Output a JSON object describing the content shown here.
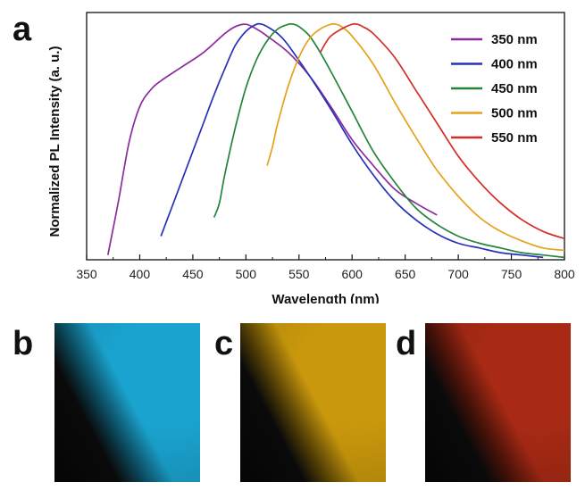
{
  "panels": {
    "a": "a",
    "b": "b",
    "c": "c",
    "d": "d"
  },
  "photos": [
    {
      "name": "photo-b",
      "color": "#1aa3cf"
    },
    {
      "name": "photo-c",
      "color": "#c9980c"
    },
    {
      "name": "photo-d",
      "color": "#a82a14"
    }
  ],
  "chart_data": {
    "type": "line",
    "title": "",
    "xlabel": "Wavelength (nm)",
    "ylabel": "Normalized PL Intensity (a. u.)",
    "xlim": [
      350,
      800
    ],
    "ylim": [
      0,
      1.05
    ],
    "xticks": [
      350,
      400,
      450,
      500,
      550,
      600,
      650,
      700,
      750,
      800
    ],
    "yticks_shown": false,
    "legend_position": "top-right",
    "series": [
      {
        "name": "350 nm",
        "color": "#8b2c9c",
        "x": [
          370,
          380,
          390,
          400,
          410,
          420,
          440,
          460,
          480,
          490,
          500,
          510,
          520,
          540,
          560,
          580,
          600,
          620,
          640,
          660,
          680
        ],
        "y": [
          0.02,
          0.25,
          0.5,
          0.65,
          0.72,
          0.76,
          0.82,
          0.88,
          0.96,
          0.99,
          1.0,
          0.98,
          0.95,
          0.88,
          0.78,
          0.65,
          0.51,
          0.4,
          0.3,
          0.24,
          0.19
        ]
      },
      {
        "name": "400 nm",
        "color": "#2730b8",
        "x": [
          420,
          430,
          440,
          450,
          460,
          470,
          480,
          490,
          500,
          510,
          515,
          520,
          530,
          540,
          560,
          580,
          600,
          620,
          640,
          660,
          680,
          700,
          720,
          740,
          760,
          780
        ],
        "y": [
          0.1,
          0.22,
          0.34,
          0.46,
          0.58,
          0.7,
          0.81,
          0.91,
          0.97,
          1.0,
          1.0,
          0.99,
          0.96,
          0.91,
          0.78,
          0.64,
          0.49,
          0.36,
          0.25,
          0.17,
          0.11,
          0.07,
          0.05,
          0.03,
          0.02,
          0.01
        ]
      },
      {
        "name": "450 nm",
        "color": "#22853a",
        "x": [
          470,
          475,
          480,
          490,
          500,
          510,
          520,
          530,
          540,
          545,
          550,
          560,
          570,
          580,
          600,
          620,
          640,
          660,
          680,
          700,
          720,
          740,
          760,
          780,
          800
        ],
        "y": [
          0.18,
          0.24,
          0.36,
          0.56,
          0.73,
          0.85,
          0.93,
          0.98,
          1.0,
          1.0,
          0.99,
          0.95,
          0.88,
          0.8,
          0.63,
          0.46,
          0.33,
          0.22,
          0.15,
          0.1,
          0.07,
          0.05,
          0.03,
          0.02,
          0.01
        ]
      },
      {
        "name": "500 nm",
        "color": "#e5a21c",
        "x": [
          520,
          525,
          530,
          540,
          550,
          560,
          570,
          580,
          585,
          590,
          600,
          620,
          640,
          660,
          680,
          700,
          720,
          740,
          760,
          780,
          800
        ],
        "y": [
          0.4,
          0.48,
          0.58,
          0.74,
          0.86,
          0.94,
          0.98,
          1.0,
          1.0,
          0.99,
          0.95,
          0.83,
          0.67,
          0.52,
          0.38,
          0.27,
          0.18,
          0.12,
          0.08,
          0.05,
          0.04
        ]
      },
      {
        "name": "550 nm",
        "color": "#d42c27",
        "x": [
          570,
          575,
          580,
          590,
          600,
          605,
          610,
          620,
          640,
          660,
          680,
          700,
          720,
          740,
          760,
          780,
          800
        ],
        "y": [
          0.88,
          0.92,
          0.95,
          0.98,
          1.0,
          1.0,
          0.99,
          0.96,
          0.86,
          0.72,
          0.58,
          0.44,
          0.33,
          0.24,
          0.17,
          0.12,
          0.09
        ]
      }
    ]
  }
}
